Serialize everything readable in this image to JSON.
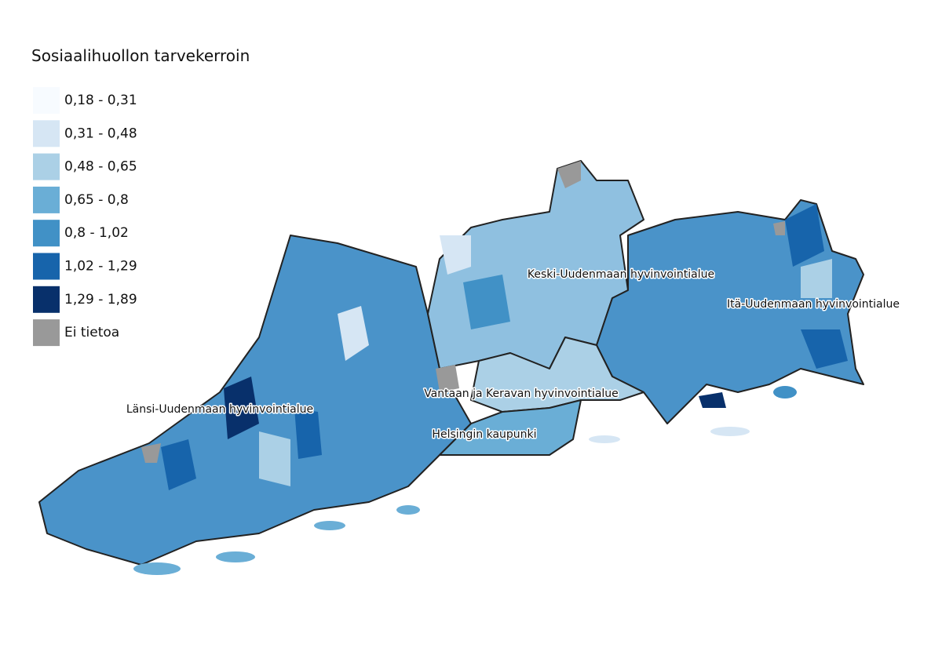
{
  "legend": {
    "title": "Sosiaalihuollon tarvekerroin",
    "items": [
      {
        "label": "0,18 - 0,31",
        "color": "#f7fbff"
      },
      {
        "label": "0,31 - 0,48",
        "color": "#d6e6f4"
      },
      {
        "label": "0,48 - 0,65",
        "color": "#abd0e6"
      },
      {
        "label": "0,65 - 0,8",
        "color": "#6aaed6"
      },
      {
        "label": "0,8 - 1,02",
        "color": "#4191c6"
      },
      {
        "label": "1,02 - 1,29",
        "color": "#1764ab"
      },
      {
        "label": "1,29 - 1,89",
        "color": "#08306b"
      },
      {
        "label": "Ei tietoa",
        "color": "#999999"
      }
    ]
  },
  "regions": [
    {
      "label": "Länsi-Uudenmaan hyvinvointialue"
    },
    {
      "label": "Keski-Uudenmaan hyvinvointialue"
    },
    {
      "label": "Itä-Uudenmaan hyvinvointialue"
    },
    {
      "label": "Vantaan ja Keravan hyvinvointialue"
    },
    {
      "label": "Helsingin kaupunki"
    }
  ]
}
